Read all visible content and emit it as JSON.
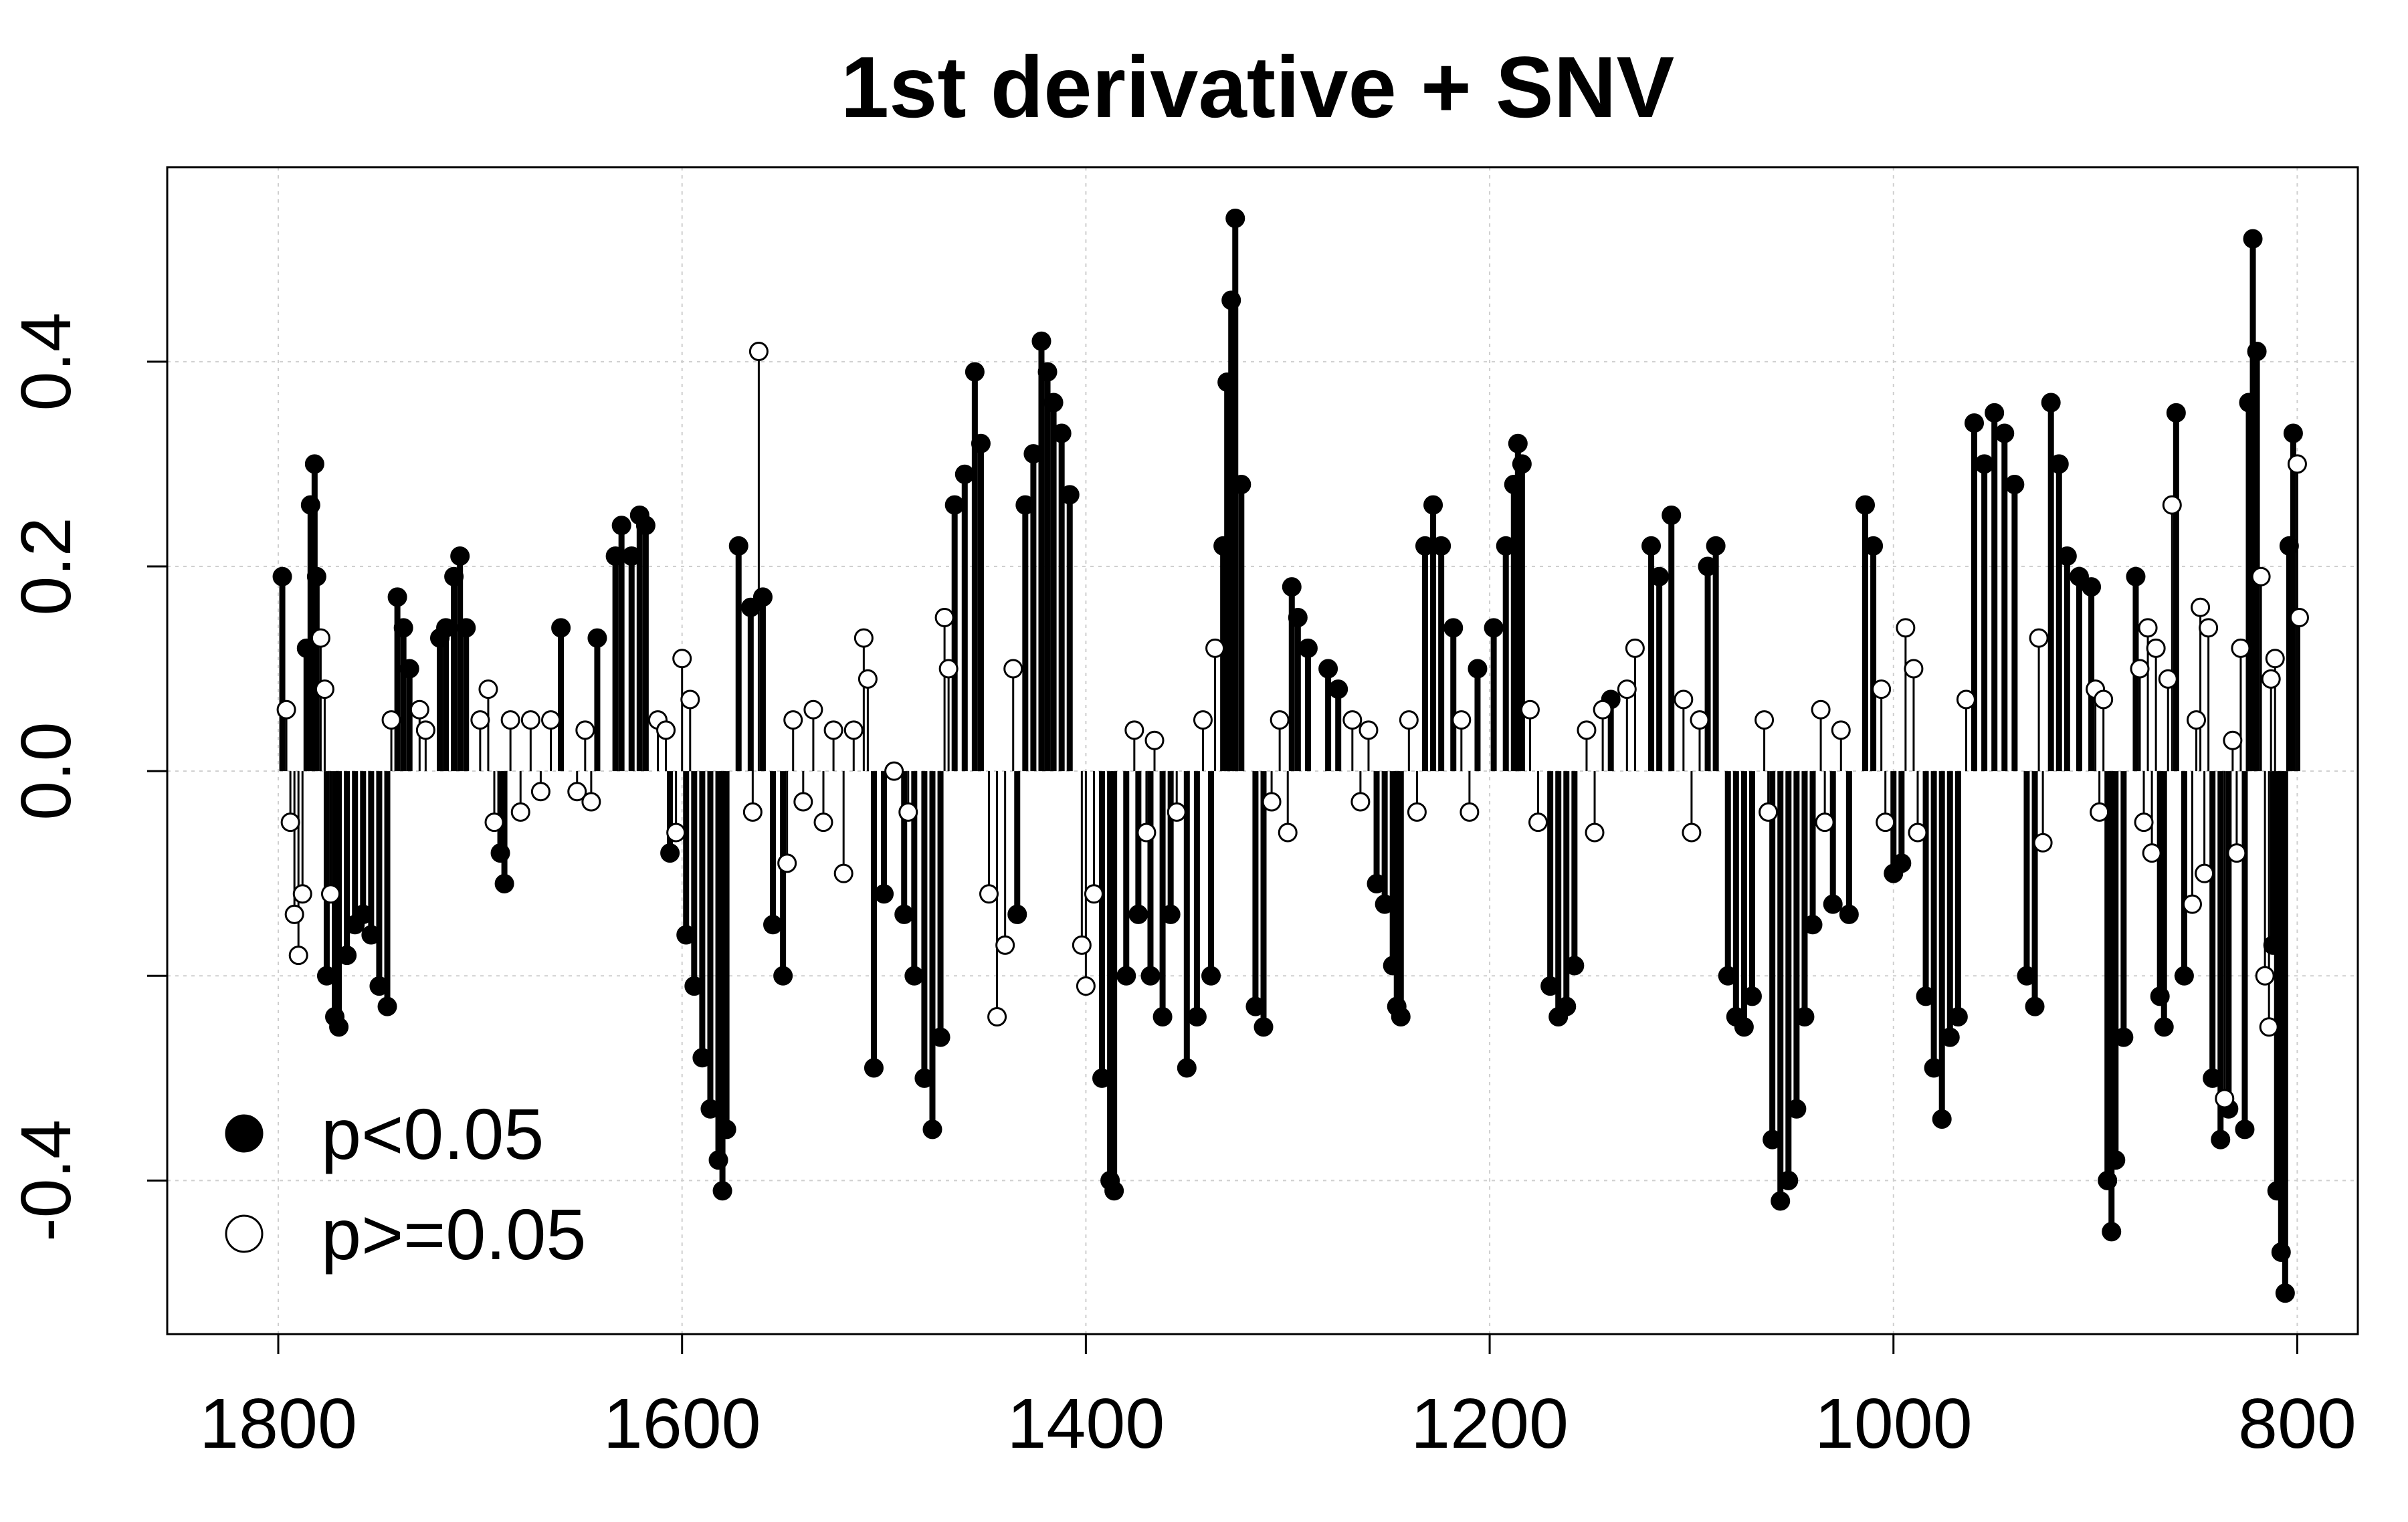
{
  "chart_data": {
    "type": "scatter",
    "title": "1st derivative + SNV",
    "xlabel": "",
    "ylabel": "",
    "xlim": [
      1855,
      770
    ],
    "ylim": [
      -0.55,
      0.59
    ],
    "x_reversed": true,
    "x_ticks": [
      1800,
      1600,
      1400,
      1200,
      1000,
      800
    ],
    "x_tick_labels": [
      "1800",
      "1600",
      "1400",
      "1200",
      "1000",
      "800"
    ],
    "y_ticks": [
      -0.4,
      -0.2,
      0.0,
      0.2,
      0.4
    ],
    "y_tick_labels": [
      "-0.4",
      "",
      "0.0",
      "0.2",
      "0.4"
    ],
    "grid": true,
    "grid_style": "dotted",
    "mark_style": "vertical lines from 0 with point markers",
    "legend_position": "bottom-left",
    "series": [
      {
        "name": "p<0.05",
        "marker": "filled-circle",
        "color": "#000000",
        "points": [
          [
            1798,
            0.19
          ],
          [
            1786,
            0.12
          ],
          [
            1784,
            0.26
          ],
          [
            1782,
            0.3
          ],
          [
            1781,
            0.19
          ],
          [
            1776,
            -0.2
          ],
          [
            1772,
            -0.24
          ],
          [
            1770,
            -0.25
          ],
          [
            1766,
            -0.18
          ],
          [
            1762,
            -0.15
          ],
          [
            1758,
            -0.14
          ],
          [
            1754,
            -0.16
          ],
          [
            1750,
            -0.21
          ],
          [
            1746,
            -0.23
          ],
          [
            1741,
            0.17
          ],
          [
            1738,
            0.14
          ],
          [
            1735,
            0.1
          ],
          [
            1720,
            0.13
          ],
          [
            1717,
            0.14
          ],
          [
            1713,
            0.19
          ],
          [
            1710,
            0.21
          ],
          [
            1707,
            0.14
          ],
          [
            1690,
            -0.08
          ],
          [
            1688,
            -0.11
          ],
          [
            1660,
            0.14
          ],
          [
            1642,
            0.13
          ],
          [
            1633,
            0.21
          ],
          [
            1630,
            0.24
          ],
          [
            1625,
            0.21
          ],
          [
            1621,
            0.25
          ],
          [
            1618,
            0.24
          ],
          [
            1606,
            -0.08
          ],
          [
            1598,
            -0.16
          ],
          [
            1594,
            -0.21
          ],
          [
            1590,
            -0.28
          ],
          [
            1586,
            -0.33
          ],
          [
            1582,
            -0.38
          ],
          [
            1580,
            -0.41
          ],
          [
            1578,
            -0.35
          ],
          [
            1572,
            0.22
          ],
          [
            1566,
            0.16
          ],
          [
            1560,
            0.17
          ],
          [
            1555,
            -0.15
          ],
          [
            1550,
            -0.2
          ],
          [
            1505,
            -0.29
          ],
          [
            1500,
            -0.12
          ],
          [
            1490,
            -0.14
          ],
          [
            1485,
            -0.2
          ],
          [
            1480,
            -0.3
          ],
          [
            1476,
            -0.35
          ],
          [
            1472,
            -0.26
          ],
          [
            1465,
            0.26
          ],
          [
            1460,
            0.29
          ],
          [
            1455,
            0.39
          ],
          [
            1452,
            0.32
          ],
          [
            1430,
            0.26
          ],
          [
            1426,
            0.31
          ],
          [
            1422,
            0.42
          ],
          [
            1419,
            0.39
          ],
          [
            1416,
            0.36
          ],
          [
            1412,
            0.33
          ],
          [
            1408,
            0.27
          ],
          [
            1434,
            -0.14
          ],
          [
            1392,
            -0.3
          ],
          [
            1388,
            -0.4
          ],
          [
            1386,
            -0.41
          ],
          [
            1380,
            -0.2
          ],
          [
            1374,
            -0.14
          ],
          [
            1368,
            -0.2
          ],
          [
            1362,
            -0.24
          ],
          [
            1358,
            -0.14
          ],
          [
            1350,
            -0.29
          ],
          [
            1345,
            -0.24
          ],
          [
            1338,
            -0.2
          ],
          [
            1332,
            0.22
          ],
          [
            1330,
            0.38
          ],
          [
            1328,
            0.46
          ],
          [
            1326,
            0.54
          ],
          [
            1323,
            0.28
          ],
          [
            1316,
            -0.23
          ],
          [
            1312,
            -0.25
          ],
          [
            1298,
            0.18
          ],
          [
            1295,
            0.15
          ],
          [
            1290,
            0.12
          ],
          [
            1280,
            0.1
          ],
          [
            1275,
            0.08
          ],
          [
            1256,
            -0.11
          ],
          [
            1252,
            -0.13
          ],
          [
            1248,
            -0.19
          ],
          [
            1246,
            -0.23
          ],
          [
            1244,
            -0.24
          ],
          [
            1232,
            0.22
          ],
          [
            1228,
            0.26
          ],
          [
            1224,
            0.22
          ],
          [
            1218,
            0.14
          ],
          [
            1206,
            0.1
          ],
          [
            1198,
            0.14
          ],
          [
            1192,
            0.22
          ],
          [
            1188,
            0.28
          ],
          [
            1186,
            0.32
          ],
          [
            1184,
            0.3
          ],
          [
            1170,
            -0.21
          ],
          [
            1166,
            -0.24
          ],
          [
            1162,
            -0.23
          ],
          [
            1158,
            -0.19
          ],
          [
            1140,
            0.07
          ],
          [
            1120,
            0.22
          ],
          [
            1116,
            0.19
          ],
          [
            1110,
            0.25
          ],
          [
            1092,
            0.2
          ],
          [
            1088,
            0.22
          ],
          [
            1082,
            -0.2
          ],
          [
            1078,
            -0.24
          ],
          [
            1074,
            -0.25
          ],
          [
            1070,
            -0.22
          ],
          [
            1060,
            -0.36
          ],
          [
            1056,
            -0.42
          ],
          [
            1052,
            -0.4
          ],
          [
            1048,
            -0.33
          ],
          [
            1044,
            -0.24
          ],
          [
            1040,
            -0.15
          ],
          [
            1030,
            -0.13
          ],
          [
            1022,
            -0.14
          ],
          [
            1014,
            0.26
          ],
          [
            1010,
            0.22
          ],
          [
            1000,
            -0.1
          ],
          [
            996,
            -0.09
          ],
          [
            984,
            -0.22
          ],
          [
            980,
            -0.29
          ],
          [
            976,
            -0.34
          ],
          [
            972,
            -0.26
          ],
          [
            968,
            -0.24
          ],
          [
            960,
            0.34
          ],
          [
            955,
            0.3
          ],
          [
            950,
            0.35
          ],
          [
            945,
            0.33
          ],
          [
            940,
            0.28
          ],
          [
            934,
            -0.2
          ],
          [
            930,
            -0.23
          ],
          [
            922,
            0.36
          ],
          [
            918,
            0.3
          ],
          [
            914,
            0.21
          ],
          [
            908,
            0.19
          ],
          [
            902,
            0.18
          ],
          [
            894,
            -0.4
          ],
          [
            892,
            -0.45
          ],
          [
            890,
            -0.38
          ],
          [
            886,
            -0.26
          ],
          [
            880,
            0.19
          ],
          [
            860,
            0.35
          ],
          [
            866,
            -0.25
          ],
          [
            868,
            -0.22
          ],
          [
            856,
            -0.2
          ],
          [
            842,
            -0.3
          ],
          [
            838,
            -0.36
          ],
          [
            834,
            -0.33
          ],
          [
            826,
            -0.35
          ],
          [
            824,
            0.36
          ],
          [
            822,
            0.52
          ],
          [
            820,
            0.41
          ],
          [
            812,
            -0.17
          ],
          [
            810,
            -0.41
          ],
          [
            808,
            -0.47
          ],
          [
            806,
            -0.51
          ],
          [
            804,
            0.22
          ],
          [
            802,
            0.33
          ]
        ]
      },
      {
        "name": "p>=0.05",
        "marker": "open-circle",
        "color": "#000000",
        "points": [
          [
            1796,
            0.06
          ],
          [
            1794,
            -0.05
          ],
          [
            1792,
            -0.14
          ],
          [
            1790,
            -0.18
          ],
          [
            1788,
            -0.12
          ],
          [
            1779,
            0.13
          ],
          [
            1777,
            0.08
          ],
          [
            1774,
            -0.12
          ],
          [
            1744,
            0.05
          ],
          [
            1730,
            0.06
          ],
          [
            1727,
            0.04
          ],
          [
            1700,
            0.05
          ],
          [
            1696,
            0.08
          ],
          [
            1693,
            -0.05
          ],
          [
            1685,
            0.05
          ],
          [
            1680,
            -0.04
          ],
          [
            1675,
            0.05
          ],
          [
            1670,
            -0.02
          ],
          [
            1665,
            0.05
          ],
          [
            1652,
            -0.02
          ],
          [
            1648,
            0.04
          ],
          [
            1645,
            -0.03
          ],
          [
            1612,
            0.05
          ],
          [
            1608,
            0.04
          ],
          [
            1603,
            -0.06
          ],
          [
            1600,
            0.11
          ],
          [
            1596,
            0.07
          ],
          [
            1565,
            -0.04
          ],
          [
            1562,
            0.41
          ],
          [
            1548,
            -0.09
          ],
          [
            1545,
            0.05
          ],
          [
            1540,
            -0.03
          ],
          [
            1535,
            0.06
          ],
          [
            1530,
            -0.05
          ],
          [
            1525,
            0.04
          ],
          [
            1520,
            -0.1
          ],
          [
            1515,
            0.04
          ],
          [
            1510,
            0.13
          ],
          [
            1508,
            0.09
          ],
          [
            1495,
            0.0
          ],
          [
            1488,
            -0.04
          ],
          [
            1470,
            0.15
          ],
          [
            1468,
            0.1
          ],
          [
            1448,
            -0.12
          ],
          [
            1444,
            -0.24
          ],
          [
            1440,
            -0.17
          ],
          [
            1436,
            0.1
          ],
          [
            1402,
            -0.17
          ],
          [
            1400,
            -0.21
          ],
          [
            1396,
            -0.12
          ],
          [
            1376,
            0.04
          ],
          [
            1370,
            -0.06
          ],
          [
            1366,
            0.03
          ],
          [
            1355,
            -0.04
          ],
          [
            1342,
            0.05
          ],
          [
            1336,
            0.12
          ],
          [
            1308,
            -0.03
          ],
          [
            1304,
            0.05
          ],
          [
            1300,
            -0.06
          ],
          [
            1268,
            0.05
          ],
          [
            1264,
            -0.03
          ],
          [
            1260,
            0.04
          ],
          [
            1240,
            0.05
          ],
          [
            1236,
            -0.04
          ],
          [
            1214,
            0.05
          ],
          [
            1210,
            -0.04
          ],
          [
            1180,
            0.06
          ],
          [
            1176,
            -0.05
          ],
          [
            1152,
            0.04
          ],
          [
            1148,
            -0.06
          ],
          [
            1144,
            0.06
          ],
          [
            1132,
            0.08
          ],
          [
            1128,
            0.12
          ],
          [
            1104,
            0.07
          ],
          [
            1100,
            -0.06
          ],
          [
            1096,
            0.05
          ],
          [
            1064,
            0.05
          ],
          [
            1062,
            -0.04
          ],
          [
            1036,
            0.06
          ],
          [
            1034,
            -0.05
          ],
          [
            1026,
            0.04
          ],
          [
            1006,
            0.08
          ],
          [
            1004,
            -0.05
          ],
          [
            994,
            0.14
          ],
          [
            990,
            0.1
          ],
          [
            988,
            -0.06
          ],
          [
            964,
            0.07
          ],
          [
            928,
            0.13
          ],
          [
            926,
            -0.07
          ],
          [
            900,
            0.08
          ],
          [
            898,
            -0.04
          ],
          [
            896,
            0.07
          ],
          [
            878,
            0.1
          ],
          [
            876,
            -0.05
          ],
          [
            874,
            0.14
          ],
          [
            872,
            -0.08
          ],
          [
            870,
            0.12
          ],
          [
            864,
            0.09
          ],
          [
            862,
            0.26
          ],
          [
            852,
            -0.13
          ],
          [
            850,
            0.05
          ],
          [
            848,
            0.16
          ],
          [
            846,
            -0.1
          ],
          [
            844,
            0.14
          ],
          [
            836,
            -0.32
          ],
          [
            832,
            0.03
          ],
          [
            830,
            -0.08
          ],
          [
            828,
            0.12
          ],
          [
            818,
            0.19
          ],
          [
            816,
            -0.2
          ],
          [
            814,
            -0.25
          ],
          [
            813,
            0.09
          ],
          [
            811,
            0.11
          ],
          [
            800,
            0.3
          ],
          [
            799,
            0.15
          ]
        ]
      }
    ]
  }
}
